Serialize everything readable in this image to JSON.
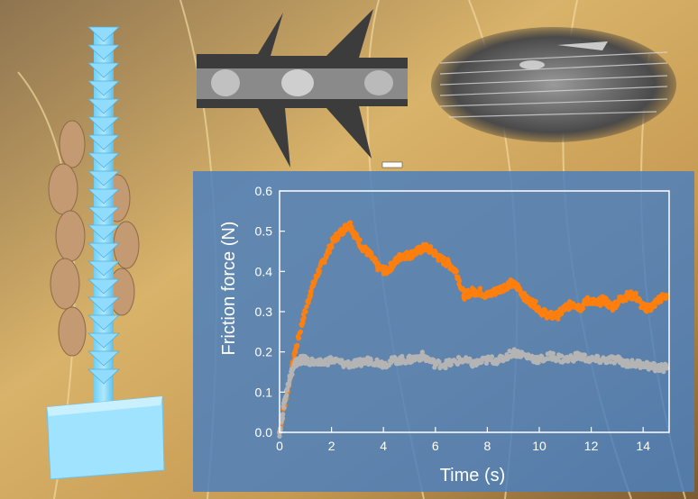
{
  "chart_data": {
    "type": "scatter",
    "xlabel": "Time (s)",
    "ylabel": "Friction force (N)",
    "xlim": [
      0,
      15
    ],
    "ylim": [
      0,
      0.6
    ],
    "xticks": [
      "0",
      "2",
      "4",
      "6",
      "8",
      "10",
      "12",
      "14"
    ],
    "yticks": [
      "0.0",
      "0.1",
      "0.2",
      "0.3",
      "0.4",
      "0.5",
      "0.6"
    ],
    "grid": false,
    "series": [
      {
        "color": "#ff7f0e",
        "x": [
          0,
          0.3,
          0.6,
          0.9,
          1.2,
          1.5,
          1.8,
          2.1,
          2.4,
          2.7,
          2.9,
          3.2,
          3.5,
          3.8,
          4.1,
          4.4,
          4.7,
          5.0,
          5.3,
          5.6,
          5.9,
          6.2,
          6.5,
          6.8,
          7.1,
          7.4,
          7.7,
          8.0,
          8.3,
          8.6,
          8.9,
          9.2,
          9.5,
          9.8,
          10.1,
          10.4,
          10.7,
          11.0,
          11.3,
          11.6,
          11.9,
          12.2,
          12.5,
          12.8,
          13.1,
          13.4,
          13.7,
          14.0,
          14.3,
          14.6,
          14.9
        ],
        "y": [
          0.0,
          0.1,
          0.2,
          0.28,
          0.35,
          0.4,
          0.44,
          0.48,
          0.5,
          0.52,
          0.49,
          0.46,
          0.44,
          0.41,
          0.4,
          0.42,
          0.44,
          0.44,
          0.45,
          0.46,
          0.45,
          0.43,
          0.42,
          0.4,
          0.34,
          0.35,
          0.35,
          0.34,
          0.35,
          0.36,
          0.37,
          0.36,
          0.33,
          0.32,
          0.3,
          0.29,
          0.29,
          0.31,
          0.32,
          0.31,
          0.33,
          0.32,
          0.33,
          0.31,
          0.33,
          0.34,
          0.34,
          0.31,
          0.31,
          0.33,
          0.34
        ]
      },
      {
        "color": "#b4b4b4",
        "x": [
          0,
          0.2,
          0.4,
          0.6,
          0.8,
          1.0,
          1.5,
          2.0,
          2.5,
          3.0,
          3.5,
          4.0,
          4.5,
          5.0,
          5.5,
          6.0,
          6.5,
          7.0,
          7.5,
          8.0,
          8.5,
          9.0,
          9.5,
          10.0,
          10.5,
          11.0,
          11.5,
          12.0,
          12.5,
          13.0,
          13.5,
          14.0,
          14.5,
          14.9
        ],
        "y": [
          0.0,
          0.08,
          0.14,
          0.17,
          0.18,
          0.18,
          0.17,
          0.18,
          0.17,
          0.17,
          0.18,
          0.17,
          0.18,
          0.18,
          0.19,
          0.17,
          0.17,
          0.18,
          0.17,
          0.18,
          0.18,
          0.2,
          0.19,
          0.18,
          0.19,
          0.18,
          0.19,
          0.18,
          0.18,
          0.18,
          0.17,
          0.17,
          0.16,
          0.16
        ]
      }
    ]
  }
}
